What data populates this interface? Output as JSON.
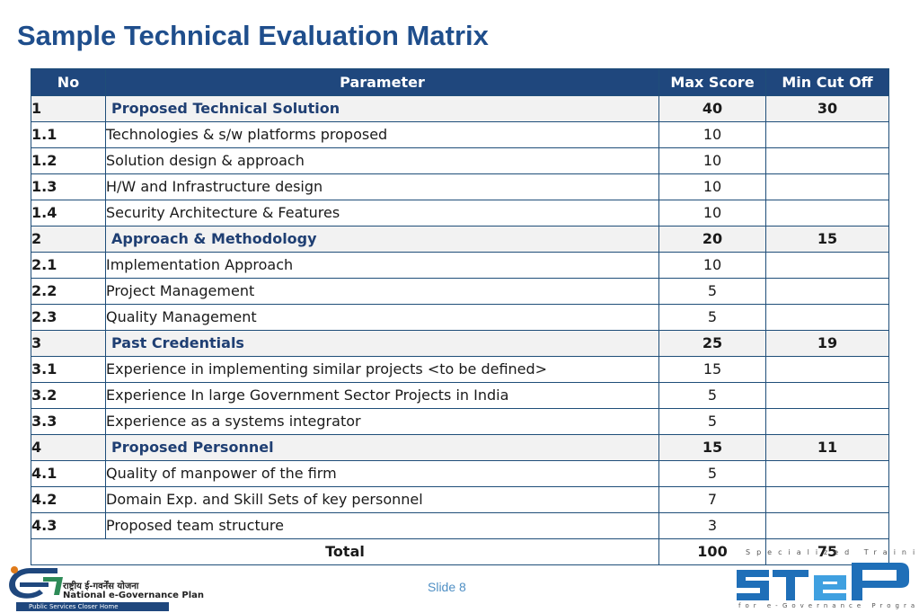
{
  "title": "Sample Technical Evaluation Matrix",
  "table": {
    "headers": [
      "No",
      "Parameter",
      "Max Score",
      "Min Cut Off"
    ],
    "rows": [
      {
        "no": "1",
        "param": "Proposed Technical Solution",
        "max": "40",
        "cut": "30",
        "section": true
      },
      {
        "no": "1.1",
        "param": "Technologies & s/w platforms proposed",
        "max": "10",
        "cut": ""
      },
      {
        "no": "1.2",
        "param": "Solution design & approach",
        "max": "10",
        "cut": ""
      },
      {
        "no": "1.3",
        "param": "H/W and Infrastructure design",
        "max": "10",
        "cut": ""
      },
      {
        "no": "1.4",
        "param": "Security Architecture & Features",
        "max": "10",
        "cut": ""
      },
      {
        "no": "2",
        "param": "Approach & Methodology",
        "max": "20",
        "cut": "15",
        "section": true
      },
      {
        "no": "2.1",
        "param": "Implementation Approach",
        "max": "10",
        "cut": ""
      },
      {
        "no": "2.2",
        "param": "Project Management",
        "max": "5",
        "cut": ""
      },
      {
        "no": "2.3",
        "param": "Quality Management",
        "max": "5",
        "cut": ""
      },
      {
        "no": "3",
        "param": "Past Credentials",
        "max": "25",
        "cut": "19",
        "section": true
      },
      {
        "no": "3.1",
        "param": "Experience in implementing similar projects <to be defined>",
        "max": "15",
        "cut": ""
      },
      {
        "no": "3.2",
        "param": "Experience In large Government Sector Projects in India",
        "max": "5",
        "cut": ""
      },
      {
        "no": "3.3",
        "param": "Experience as a systems integrator",
        "max": "5",
        "cut": ""
      },
      {
        "no": "4",
        "param": "Proposed Personnel",
        "max": "15",
        "cut": "11",
        "section": true
      },
      {
        "no": "4.1",
        "param": "Quality of manpower of the firm",
        "max": "5",
        "cut": ""
      },
      {
        "no": "4.2",
        "param": "Domain Exp. and Skill Sets of key personnel",
        "max": "7",
        "cut": ""
      },
      {
        "no": "4.3",
        "param": "Proposed team structure",
        "max": "3",
        "cut": ""
      }
    ],
    "total": {
      "label": "Total",
      "max": "100",
      "cut": "75"
    }
  },
  "slide_number": "Slide 8",
  "logo_left": {
    "hindi": "राष्ट्रीय ई-गवर्नेंस योजना",
    "english": "National e-Governance Plan",
    "tagline": "Public Services Closer Home"
  },
  "logo_right": {
    "top_text": "Specialized Training",
    "bottom_text": "for e-Governance Programme"
  },
  "colors": {
    "title": "#1f4e8c",
    "header_bg": "#1f477d",
    "border": "#1f4e79",
    "section_text": "#1f3f73"
  }
}
